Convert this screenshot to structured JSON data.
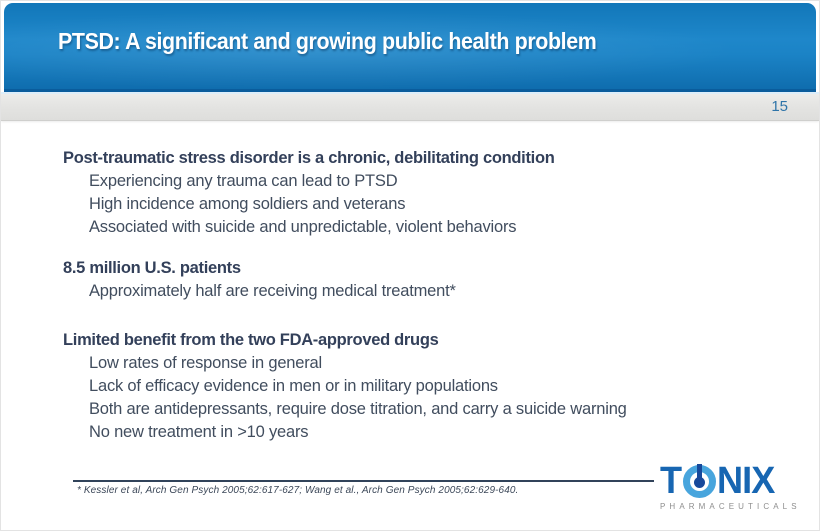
{
  "slide": {
    "title": "PTSD: A significant and growing public health problem",
    "slide_number": "15",
    "sections": [
      {
        "heading": "Post-traumatic stress disorder is a chronic, debilitating condition",
        "items": [
          "Experiencing any trauma can lead to PTSD",
          "High incidence among soldiers and veterans",
          "Associated with suicide and unpredictable, violent behaviors"
        ]
      },
      {
        "heading": "8.5 million U.S. patients",
        "items": [
          "Approximately half are receiving medical treatment*"
        ]
      },
      {
        "heading": "Limited benefit from the two FDA-approved drugs",
        "items": [
          "Low rates of response in general",
          "Lack of efficacy evidence in men or in military populations",
          "Both are antidepressants, require dose titration, and carry a suicide warning",
          "No new treatment in >10 years"
        ]
      }
    ],
    "footnote": "* Kessler et al, Arch Gen Psych 2005;62:617-627; Wang et al., Arch Gen Psych 2005;62:629-640.",
    "logo": {
      "letter_t": "T",
      "letters_nix": "NIX",
      "subtitle": "PHARMACEUTICALS"
    },
    "colors": {
      "header_blue": "#1e87ca",
      "header_blue_dark": "#0a5c9c",
      "strip_gray": "#e3e3e1",
      "text_navy": "#3a4656",
      "page_number_blue": "#2e74a8",
      "logo_dark_blue": "#1766b2",
      "logo_light_blue": "#48a5dd",
      "logo_navy": "#17499b",
      "logo_gray": "#8e8e8e"
    }
  }
}
